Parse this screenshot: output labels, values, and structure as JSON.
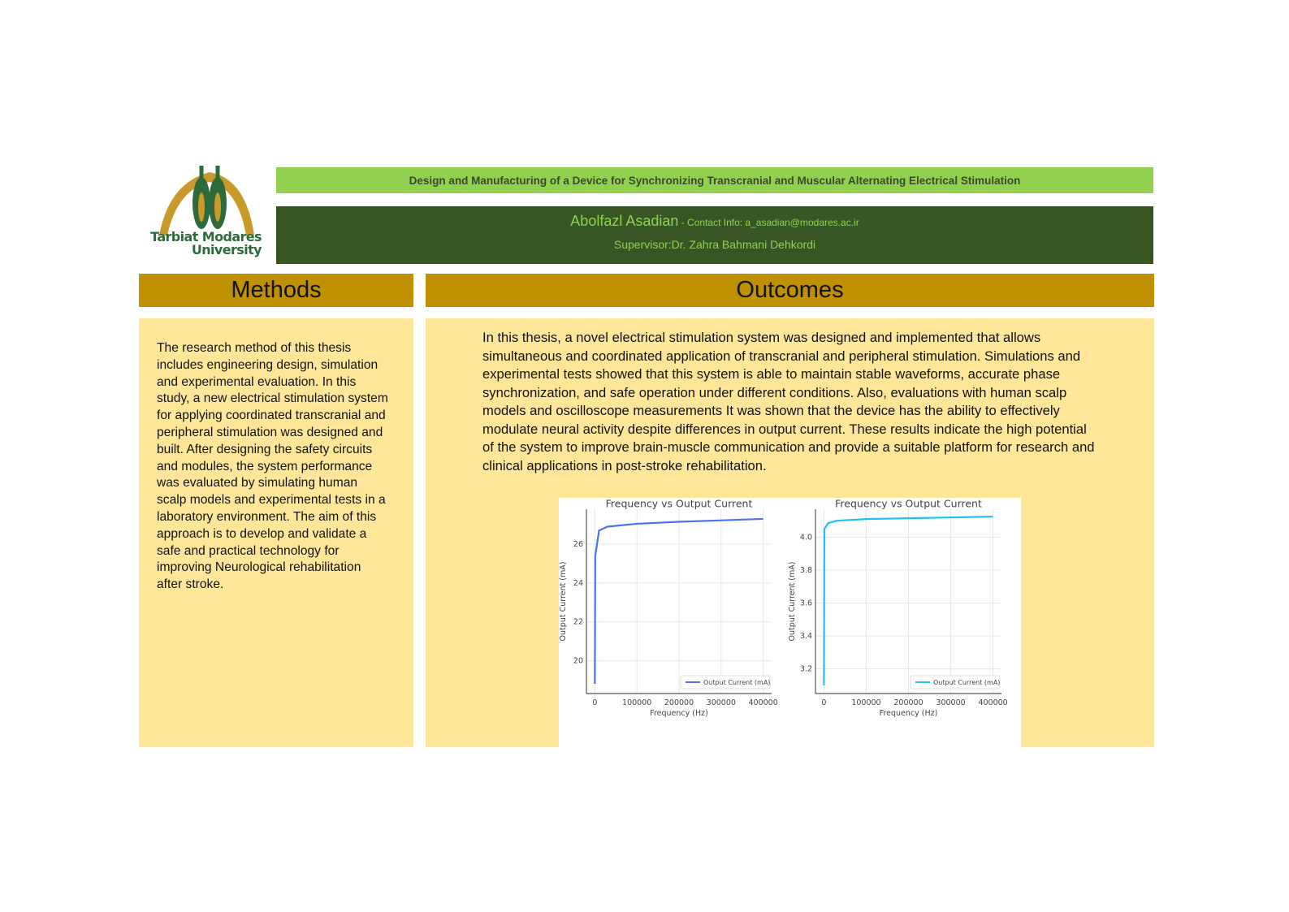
{
  "logo": {
    "text_line1": "Tarbiat Modares",
    "text_line2": "University",
    "colors": {
      "gold": "#c89a2c",
      "green": "#2f6b3a"
    }
  },
  "header": {
    "title": "Design and Manufacturing of a Device for Synchronizing Transcranial and Muscular Alternating Electrical Stimulation",
    "author": "Abolfazl Asadian",
    "contact": " - Contact Info: a_asadian@modares.ac.ir",
    "supervisor": "Supervisor:Dr. Zahra Bahmani Dehkordi"
  },
  "methods": {
    "heading": "Methods",
    "body": "The research method of this thesis includes engineering design, simulation and experimental evaluation. In this study, a new electrical stimulation system for applying coordinated transcranial and peripheral stimulation was designed and built. After designing the safety circuits and modules, the system performance was evaluated by simulating human scalp models and experimental tests in a laboratory environment. The aim of this approach is to develop and validate a safe and practical technology for improving Neurological rehabilitation after stroke."
  },
  "outcomes": {
    "heading": "Outcomes",
    "body": "In this thesis, a novel electrical stimulation system was designed and implemented that allows simultaneous and coordinated application of transcranial and peripheral stimulation. Simulations and experimental tests showed that this system is able to maintain stable waveforms, accurate phase synchronization, and safe operation under different conditions. Also, evaluations with human scalp models and oscilloscope measurements It was shown that the device has the ability to effectively modulate neural activity despite differences in output current. These results indicate the high potential of the system to improve brain-muscle communication and provide a suitable platform for research and clinical applications in post-stroke rehabilitation."
  },
  "colors": {
    "title_bar": "#92d050",
    "author_bar": "#375623",
    "section_head": "#bf9000",
    "panel": "#ffe699"
  },
  "chart_data": [
    {
      "type": "line",
      "title": "Frequency vs Output Current",
      "xlabel": "Frequency (Hz)",
      "ylabel": "Output Current (mA)",
      "xlim": [
        -20000,
        420000
      ],
      "ylim": [
        18.3,
        27.8
      ],
      "xticks": [
        0,
        100000,
        200000,
        300000,
        400000
      ],
      "yticks": [
        20,
        22,
        24,
        26
      ],
      "grid": true,
      "legend": "bottom-right",
      "color": "#4c72f0",
      "series": [
        {
          "name": "Output Current (mA)",
          "x": [
            10,
            1000,
            10000,
            30000,
            100000,
            200000,
            400000
          ],
          "y": [
            18.8,
            25.4,
            26.7,
            26.9,
            27.05,
            27.15,
            27.3
          ]
        }
      ]
    },
    {
      "type": "line",
      "title": "Frequency vs Output Current",
      "xlabel": "Frequency (Hz)",
      "ylabel": "Output Current (mA)",
      "xlim": [
        -20000,
        420000
      ],
      "ylim": [
        3.05,
        4.17
      ],
      "xticks": [
        0,
        100000,
        200000,
        300000,
        400000
      ],
      "yticks": [
        3.2,
        3.4,
        3.6,
        3.8,
        4.0
      ],
      "grid": true,
      "legend": "bottom-right",
      "color": "#1ec0ff",
      "series": [
        {
          "name": "Output Current (mA)",
          "x": [
            10,
            1000,
            10000,
            30000,
            100000,
            200000,
            400000
          ],
          "y": [
            3.1,
            4.05,
            4.085,
            4.1,
            4.11,
            4.115,
            4.125
          ]
        }
      ]
    }
  ]
}
